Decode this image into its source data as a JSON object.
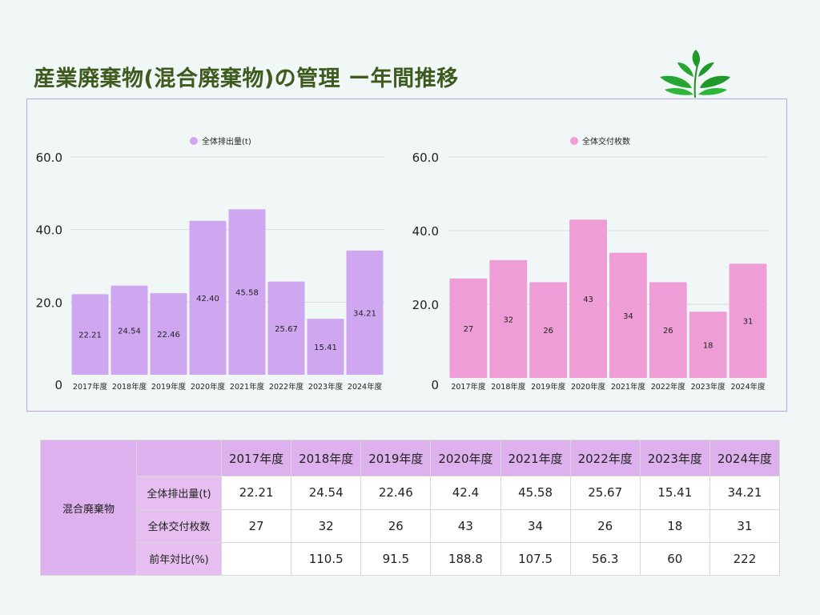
{
  "title": "産業廃棄物(混合廃棄物)の管理 ー年間推移",
  "colors": {
    "series1": "#cfa6f0",
    "series2": "#ee9dd6",
    "title": "#3f5a1f"
  },
  "logo_icon": "green-leaves-icon",
  "chart_data": [
    {
      "type": "bar",
      "legend": "全体排出量(t)",
      "categories": [
        "2017年度",
        "2018年度",
        "2019年度",
        "2020年度",
        "2021年度",
        "2022年度",
        "2023年度",
        "2024年度"
      ],
      "values": [
        22.21,
        24.54,
        22.46,
        42.4,
        45.58,
        25.67,
        15.41,
        34.21
      ],
      "labels": [
        "22.21",
        "24.54",
        "22.46",
        "42.40",
        "45.58",
        "25.67",
        "15.41",
        "34.21"
      ],
      "yticks": [
        "0",
        "20.0",
        "40.0",
        "60.0"
      ],
      "ylim": [
        0,
        60
      ],
      "grid": true,
      "legend_position": "top-center"
    },
    {
      "type": "bar",
      "legend": "全体交付枚数",
      "categories": [
        "2017年度",
        "2018年度",
        "2019年度",
        "2020年度",
        "2021年度",
        "2022年度",
        "2023年度",
        "2024年度"
      ],
      "values": [
        27,
        32,
        26,
        43,
        34,
        26,
        18,
        31
      ],
      "labels": [
        "27",
        "32",
        "26",
        "43",
        "34",
        "26",
        "18",
        "31"
      ],
      "yticks": [
        "0",
        "20.0",
        "40.0",
        "60.0"
      ],
      "ylim": [
        0,
        60
      ],
      "grid": true,
      "legend_position": "top-center"
    }
  ],
  "table": {
    "group_label": "混合廃棄物",
    "columns": [
      "2017年度",
      "2018年度",
      "2019年度",
      "2020年度",
      "2021年度",
      "2022年度",
      "2023年度",
      "2024年度"
    ],
    "rows": [
      {
        "label": "全体排出量(t)",
        "values": [
          "22.21",
          "24.54",
          "22.46",
          "42.4",
          "45.58",
          "25.67",
          "15.41",
          "34.21"
        ]
      },
      {
        "label": "全体交付枚数",
        "values": [
          "27",
          "32",
          "26",
          "43",
          "34",
          "26",
          "18",
          "31"
        ]
      },
      {
        "label": "前年対比(%)",
        "values": [
          "",
          "110.5",
          "91.5",
          "188.8",
          "107.5",
          "56.3",
          "60",
          "222"
        ]
      }
    ]
  }
}
